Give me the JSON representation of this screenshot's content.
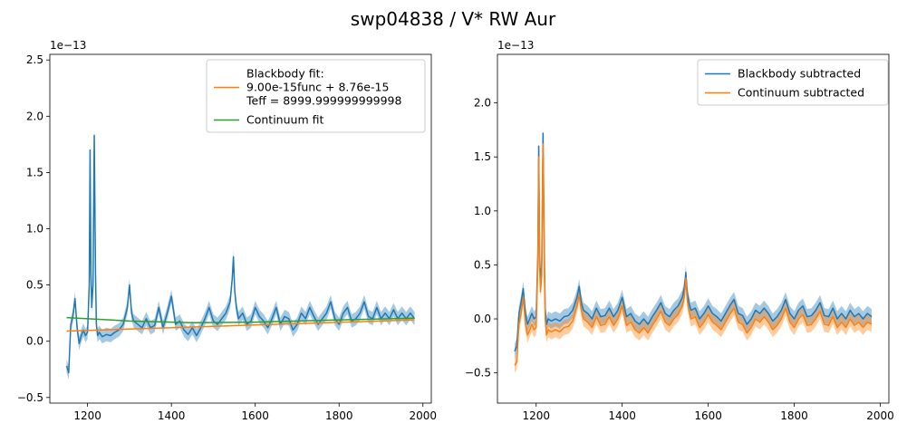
{
  "figure": {
    "suptitle": "swp04838 / V* RW Aur"
  },
  "chart_data": [
    {
      "type": "line",
      "name": "left-panel",
      "xlim": [
        1110,
        2020
      ],
      "ylim": [
        -0.55,
        2.55
      ],
      "y_offset_text": "1e−13",
      "xticks": [
        1200,
        1400,
        1600,
        1800,
        2000
      ],
      "yticks": [
        -0.5,
        0.0,
        0.5,
        1.0,
        1.5,
        2.0,
        2.5
      ],
      "xtick_labels": [
        "1200",
        "1400",
        "1600",
        "1800",
        "2000"
      ],
      "ytick_labels": [
        "−0.5",
        "0.0",
        "0.5",
        "1.0",
        "1.5",
        "2.0",
        "2.5"
      ],
      "grid": false,
      "legend_position": "top-right",
      "series": [
        {
          "id": "spectrum",
          "color": "#1f77b4",
          "band": 0.06,
          "x": [
            1150,
            1155,
            1160,
            1165,
            1170,
            1175,
            1180,
            1185,
            1190,
            1195,
            1200,
            1204,
            1206,
            1208,
            1210,
            1213,
            1216,
            1219,
            1221,
            1224,
            1228,
            1235,
            1245,
            1255,
            1265,
            1275,
            1285,
            1295,
            1300,
            1305,
            1310,
            1320,
            1330,
            1340,
            1350,
            1360,
            1370,
            1380,
            1390,
            1400,
            1410,
            1420,
            1430,
            1440,
            1450,
            1460,
            1470,
            1480,
            1490,
            1500,
            1510,
            1520,
            1530,
            1540,
            1545,
            1548,
            1551,
            1555,
            1560,
            1570,
            1580,
            1590,
            1600,
            1610,
            1620,
            1630,
            1640,
            1650,
            1660,
            1670,
            1680,
            1690,
            1700,
            1710,
            1720,
            1730,
            1740,
            1750,
            1760,
            1770,
            1780,
            1790,
            1800,
            1810,
            1820,
            1830,
            1840,
            1850,
            1860,
            1870,
            1880,
            1890,
            1900,
            1910,
            1920,
            1930,
            1940,
            1950,
            1960,
            1970,
            1980
          ],
          "y": [
            -0.22,
            -0.28,
            0.15,
            0.22,
            0.38,
            0.12,
            -0.02,
            0.05,
            0.1,
            0.05,
            0.08,
            0.5,
            1.7,
            0.6,
            0.3,
            0.5,
            1.83,
            0.6,
            0.15,
            0.05,
            0.08,
            0.04,
            0.06,
            0.05,
            0.08,
            0.1,
            0.15,
            0.3,
            0.5,
            0.25,
            0.18,
            0.15,
            0.12,
            0.2,
            0.12,
            0.14,
            0.3,
            0.12,
            0.25,
            0.4,
            0.15,
            0.18,
            0.1,
            0.06,
            0.12,
            0.05,
            0.12,
            0.2,
            0.3,
            0.18,
            0.15,
            0.2,
            0.25,
            0.35,
            0.55,
            0.75,
            0.45,
            0.3,
            0.2,
            0.25,
            0.15,
            0.18,
            0.3,
            0.22,
            0.18,
            0.12,
            0.2,
            0.3,
            0.15,
            0.22,
            0.2,
            0.1,
            0.15,
            0.25,
            0.2,
            0.3,
            0.22,
            0.15,
            0.2,
            0.25,
            0.35,
            0.2,
            0.15,
            0.25,
            0.3,
            0.18,
            0.2,
            0.25,
            0.35,
            0.22,
            0.2,
            0.3,
            0.2,
            0.25,
            0.2,
            0.28,
            0.2,
            0.25,
            0.2,
            0.25,
            0.2
          ]
        },
        {
          "id": "blackbody-fit",
          "color": "#ff7f0e",
          "x": [
            1150,
            1980
          ],
          "y": [
            0.09,
            0.19
          ]
        },
        {
          "id": "continuum-fit",
          "color": "#2ca02c",
          "x": [
            1150,
            1300,
            1450,
            1600,
            1750,
            1980
          ],
          "y": [
            0.21,
            0.18,
            0.165,
            0.17,
            0.185,
            0.205
          ]
        }
      ],
      "legend": [
        {
          "series": "blackbody-fit",
          "color": "#ff7f0e",
          "lines": [
            "Blackbody fit:",
            "9.00e-15func + 8.76e-15",
            "Teff = 8999.999999999998"
          ]
        },
        {
          "series": "continuum-fit",
          "color": "#2ca02c",
          "lines": [
            "Continuum fit"
          ]
        }
      ]
    },
    {
      "type": "line",
      "name": "right-panel",
      "xlim": [
        1110,
        2020
      ],
      "ylim": [
        -0.78,
        2.45
      ],
      "y_offset_text": "1e−13",
      "xticks": [
        1200,
        1400,
        1600,
        1800,
        2000
      ],
      "yticks": [
        -0.5,
        0.0,
        0.5,
        1.0,
        1.5,
        2.0
      ],
      "xtick_labels": [
        "1200",
        "1400",
        "1600",
        "1800",
        "2000"
      ],
      "ytick_labels": [
        "−0.5",
        "0.0",
        "0.5",
        "1.0",
        "1.5",
        "2.0"
      ],
      "grid": false,
      "legend_position": "top-right",
      "series": [
        {
          "id": "blackbody-subtracted",
          "color": "#1f77b4",
          "band": 0.07,
          "x": [
            1150,
            1155,
            1160,
            1165,
            1170,
            1175,
            1180,
            1185,
            1190,
            1195,
            1200,
            1204,
            1206,
            1208,
            1210,
            1213,
            1216,
            1219,
            1221,
            1224,
            1228,
            1235,
            1245,
            1255,
            1265,
            1275,
            1285,
            1295,
            1300,
            1305,
            1310,
            1320,
            1330,
            1340,
            1350,
            1360,
            1370,
            1380,
            1390,
            1400,
            1410,
            1420,
            1430,
            1440,
            1450,
            1460,
            1470,
            1480,
            1490,
            1500,
            1510,
            1520,
            1530,
            1540,
            1545,
            1548,
            1551,
            1555,
            1560,
            1570,
            1580,
            1590,
            1600,
            1610,
            1620,
            1630,
            1640,
            1650,
            1660,
            1670,
            1680,
            1690,
            1700,
            1710,
            1720,
            1730,
            1740,
            1750,
            1760,
            1770,
            1780,
            1790,
            1800,
            1810,
            1820,
            1830,
            1840,
            1850,
            1860,
            1870,
            1880,
            1890,
            1900,
            1910,
            1920,
            1930,
            1940,
            1950,
            1960,
            1970,
            1980
          ],
          "y": [
            -0.3,
            -0.25,
            0.05,
            0.15,
            0.28,
            0.05,
            -0.05,
            0.0,
            0.05,
            0.0,
            0.02,
            0.6,
            1.6,
            0.6,
            0.35,
            0.5,
            1.72,
            0.6,
            0.1,
            -0.05,
            0.0,
            -0.02,
            0.0,
            -0.02,
            0.02,
            0.03,
            0.08,
            0.2,
            0.3,
            0.15,
            0.08,
            0.05,
            0.0,
            0.1,
            0.02,
            0.03,
            0.1,
            0.02,
            0.08,
            0.2,
            0.02,
            0.05,
            -0.02,
            -0.05,
            0.0,
            -0.05,
            0.02,
            0.08,
            0.15,
            0.05,
            0.02,
            0.08,
            0.12,
            0.2,
            0.3,
            0.43,
            0.25,
            0.15,
            0.08,
            0.1,
            0.0,
            0.05,
            0.12,
            0.05,
            0.02,
            -0.02,
            0.05,
            0.12,
            0.18,
            0.05,
            0.03,
            -0.05,
            0.0,
            0.08,
            0.05,
            0.1,
            0.05,
            -0.02,
            0.02,
            0.08,
            0.18,
            0.05,
            0.0,
            0.08,
            0.12,
            0.02,
            0.03,
            0.08,
            0.15,
            0.03,
            0.02,
            0.1,
            0.0,
            0.05,
            0.0,
            0.08,
            0.02,
            0.05,
            0.0,
            0.05,
            0.02
          ]
        },
        {
          "id": "continuum-subtracted",
          "color": "#ff7f0e",
          "band": 0.07,
          "x": [
            1150,
            1155,
            1160,
            1165,
            1170,
            1175,
            1180,
            1185,
            1190,
            1195,
            1200,
            1204,
            1206,
            1208,
            1210,
            1213,
            1216,
            1219,
            1221,
            1224,
            1228,
            1235,
            1245,
            1255,
            1265,
            1275,
            1285,
            1295,
            1300,
            1305,
            1310,
            1320,
            1330,
            1340,
            1350,
            1360,
            1370,
            1380,
            1390,
            1400,
            1410,
            1420,
            1430,
            1440,
            1450,
            1460,
            1470,
            1480,
            1490,
            1500,
            1510,
            1520,
            1530,
            1540,
            1545,
            1548,
            1551,
            1555,
            1560,
            1570,
            1580,
            1590,
            1600,
            1610,
            1620,
            1630,
            1640,
            1650,
            1660,
            1670,
            1680,
            1690,
            1700,
            1710,
            1720,
            1730,
            1740,
            1750,
            1760,
            1770,
            1780,
            1790,
            1800,
            1810,
            1820,
            1830,
            1840,
            1850,
            1860,
            1870,
            1880,
            1890,
            1900,
            1910,
            1920,
            1930,
            1940,
            1950,
            1960,
            1970,
            1980
          ],
          "y": [
            -0.43,
            -0.4,
            -0.05,
            0.05,
            0.2,
            -0.05,
            -0.15,
            -0.1,
            -0.05,
            -0.1,
            -0.08,
            0.5,
            1.5,
            0.5,
            0.25,
            0.4,
            1.62,
            0.5,
            0.0,
            -0.15,
            -0.1,
            -0.12,
            -0.1,
            -0.12,
            -0.08,
            -0.07,
            -0.02,
            0.12,
            0.22,
            0.08,
            0.0,
            -0.03,
            -0.08,
            0.02,
            -0.06,
            -0.05,
            0.02,
            -0.06,
            0.0,
            0.12,
            -0.06,
            -0.03,
            -0.1,
            -0.13,
            -0.08,
            -0.13,
            -0.06,
            0.0,
            0.07,
            -0.03,
            -0.06,
            0.0,
            0.04,
            0.12,
            0.22,
            0.38,
            0.18,
            0.08,
            0.0,
            0.02,
            -0.08,
            -0.03,
            0.04,
            -0.03,
            -0.06,
            -0.1,
            -0.03,
            0.04,
            0.1,
            -0.03,
            -0.05,
            -0.13,
            -0.08,
            0.0,
            -0.03,
            0.02,
            -0.03,
            -0.1,
            -0.06,
            0.0,
            0.1,
            -0.03,
            -0.08,
            0.0,
            0.04,
            -0.06,
            -0.05,
            0.0,
            0.07,
            -0.05,
            -0.06,
            0.02,
            -0.08,
            -0.03,
            -0.08,
            0.0,
            -0.06,
            -0.03,
            -0.08,
            -0.03,
            -0.05
          ]
        }
      ],
      "legend": [
        {
          "series": "blackbody-subtracted",
          "color": "#1f77b4",
          "lines": [
            "Blackbody subtracted"
          ]
        },
        {
          "series": "continuum-subtracted",
          "color": "#ff7f0e",
          "lines": [
            "Continuum subtracted"
          ]
        }
      ]
    }
  ]
}
